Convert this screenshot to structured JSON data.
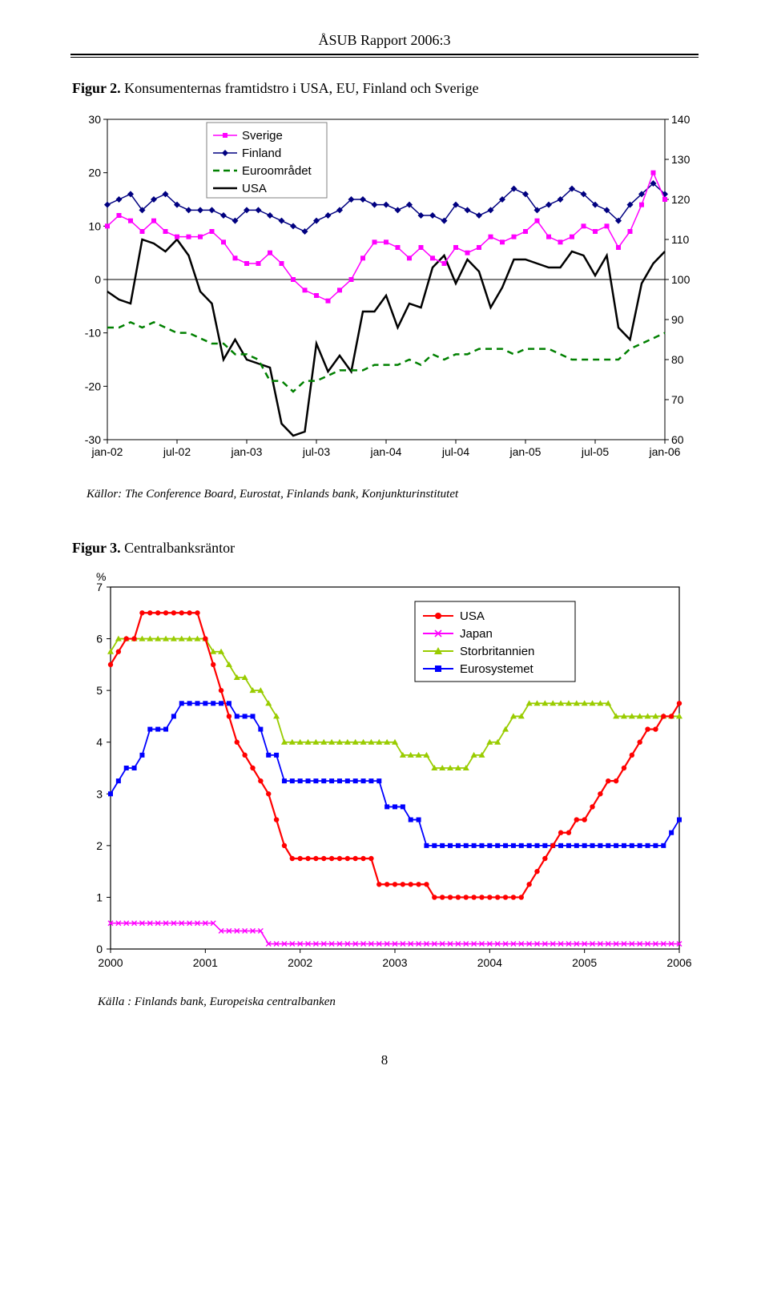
{
  "header": {
    "running_title": "ÅSUB Rapport 2006:3"
  },
  "page_number": "8",
  "fig1": {
    "title_prefix": "Figur 2.",
    "title_rest": " Konsumenternas framtidstro i USA, EU, Finland och Sverige",
    "source_label": "Källor:",
    "source_text": " The Conference Board, Eurostat, Finlands bank, Konjunkturinstitutet",
    "type": "line",
    "left_axis": {
      "min": -30,
      "max": 30,
      "ticks": [
        -30,
        -20,
        -10,
        0,
        10,
        20,
        30
      ]
    },
    "right_axis": {
      "min": 60,
      "max": 140,
      "ticks": [
        60,
        70,
        80,
        90,
        100,
        110,
        120,
        130,
        140
      ]
    },
    "x_labels": [
      "jan-02",
      "jul-02",
      "jan-03",
      "jul-03",
      "jan-04",
      "jul-04",
      "jan-05",
      "jul-05",
      "jan-06"
    ],
    "x_count": 49,
    "colors": {
      "sverige": "#ff00ff",
      "finland": "#000080",
      "euro": "#008000",
      "usa": "#000000",
      "grid": "#000000",
      "bg": "#ffffff",
      "legend_border": "#808080"
    },
    "legend": {
      "items": [
        {
          "key": "sverige",
          "label": "Sverige",
          "marker": "square-line",
          "color": "#ff00ff"
        },
        {
          "key": "finland",
          "label": "Finland",
          "marker": "diamond-line",
          "color": "#000080"
        },
        {
          "key": "euro",
          "label": "Euroområdet",
          "marker": "dash",
          "color": "#008000"
        },
        {
          "key": "usa",
          "label": "USA",
          "marker": "solid",
          "color": "#000000"
        }
      ]
    },
    "series": {
      "sverige": [
        10,
        12,
        11,
        9,
        11,
        9,
        8,
        8,
        8,
        9,
        7,
        4,
        3,
        3,
        5,
        3,
        0,
        -2,
        -3,
        -4,
        -2,
        0,
        4,
        7,
        7,
        6,
        4,
        6,
        4,
        3,
        6,
        5,
        6,
        8,
        7,
        8,
        9,
        11,
        8,
        7,
        8,
        10,
        9,
        10,
        6,
        9,
        14,
        20,
        15
      ],
      "finland": [
        14,
        15,
        16,
        13,
        15,
        16,
        14,
        13,
        13,
        13,
        12,
        11,
        13,
        13,
        12,
        11,
        10,
        9,
        11,
        12,
        13,
        15,
        15,
        14,
        14,
        13,
        14,
        12,
        12,
        11,
        14,
        13,
        12,
        13,
        15,
        17,
        16,
        13,
        14,
        15,
        17,
        16,
        14,
        13,
        11,
        14,
        16,
        18,
        16
      ],
      "euro": [
        -9,
        -9,
        -8,
        -9,
        -8,
        -9,
        -10,
        -10,
        -11,
        -12,
        -12,
        -14,
        -14,
        -15,
        -19,
        -19,
        -21,
        -19,
        -19,
        -18,
        -17,
        -17,
        -17,
        -16,
        -16,
        -16,
        -15,
        -16,
        -14,
        -15,
        -14,
        -14,
        -13,
        -13,
        -13,
        -14,
        -13,
        -13,
        -13,
        -14,
        -15,
        -15,
        -15,
        -15,
        -15,
        -13,
        -12,
        -11,
        -10
      ],
      "usa": [
        97,
        95,
        94,
        110,
        109,
        107,
        110,
        106,
        97,
        94,
        80,
        85,
        80,
        79,
        78,
        64,
        61,
        62,
        84,
        77,
        81,
        77,
        92,
        92,
        96,
        88,
        94,
        93,
        103,
        106,
        99,
        105,
        102,
        93,
        98,
        105,
        105,
        104,
        103,
        103,
        107,
        106,
        101,
        106,
        88,
        85,
        99,
        104,
        107
      ]
    }
  },
  "fig2": {
    "title_prefix": "Figur 3.",
    "title_rest": " Centralbanksräntor",
    "source_label": "Källa",
    "source_text": " : Finlands bank, Europeiska centralbanken",
    "y_label": "%",
    "type": "line",
    "y_axis": {
      "min": 0,
      "max": 7,
      "ticks": [
        0,
        1,
        2,
        3,
        4,
        5,
        6,
        7
      ]
    },
    "x_labels": [
      "2000",
      "2001",
      "2002",
      "2003",
      "2004",
      "2005",
      "2006"
    ],
    "x_count": 73,
    "colors": {
      "usa": "#ff0000",
      "japan": "#ff00ff",
      "uk": "#99cc00",
      "euro": "#0000ff",
      "grid": "#000000",
      "bg": "#ffffff",
      "legend_border": "#000000"
    },
    "legend": {
      "items": [
        {
          "key": "usa",
          "label": "USA",
          "marker": "circle",
          "color": "#ff0000"
        },
        {
          "key": "japan",
          "label": "Japan",
          "marker": "x",
          "color": "#ff00ff"
        },
        {
          "key": "uk",
          "label": "Storbritannien",
          "marker": "triangle",
          "color": "#99cc00"
        },
        {
          "key": "euro",
          "label": "Eurosystemet",
          "marker": "square",
          "color": "#0000ff"
        }
      ]
    },
    "series": {
      "usa": [
        5.5,
        5.75,
        6.0,
        6.0,
        6.5,
        6.5,
        6.5,
        6.5,
        6.5,
        6.5,
        6.5,
        6.5,
        6.0,
        5.5,
        5.0,
        4.5,
        4.0,
        3.75,
        3.5,
        3.25,
        3.0,
        2.5,
        2.0,
        1.75,
        1.75,
        1.75,
        1.75,
        1.75,
        1.75,
        1.75,
        1.75,
        1.75,
        1.75,
        1.75,
        1.25,
        1.25,
        1.25,
        1.25,
        1.25,
        1.25,
        1.25,
        1.0,
        1.0,
        1.0,
        1.0,
        1.0,
        1.0,
        1.0,
        1.0,
        1.0,
        1.0,
        1.0,
        1.0,
        1.25,
        1.5,
        1.75,
        2.0,
        2.25,
        2.25,
        2.5,
        2.5,
        2.75,
        3.0,
        3.25,
        3.25,
        3.5,
        3.75,
        4.0,
        4.25,
        4.25,
        4.5,
        4.5,
        4.75
      ],
      "japan": [
        0.5,
        0.5,
        0.5,
        0.5,
        0.5,
        0.5,
        0.5,
        0.5,
        0.5,
        0.5,
        0.5,
        0.5,
        0.5,
        0.5,
        0.35,
        0.35,
        0.35,
        0.35,
        0.35,
        0.35,
        0.1,
        0.1,
        0.1,
        0.1,
        0.1,
        0.1,
        0.1,
        0.1,
        0.1,
        0.1,
        0.1,
        0.1,
        0.1,
        0.1,
        0.1,
        0.1,
        0.1,
        0.1,
        0.1,
        0.1,
        0.1,
        0.1,
        0.1,
        0.1,
        0.1,
        0.1,
        0.1,
        0.1,
        0.1,
        0.1,
        0.1,
        0.1,
        0.1,
        0.1,
        0.1,
        0.1,
        0.1,
        0.1,
        0.1,
        0.1,
        0.1,
        0.1,
        0.1,
        0.1,
        0.1,
        0.1,
        0.1,
        0.1,
        0.1,
        0.1,
        0.1,
        0.1,
        0.1
      ],
      "uk": [
        5.75,
        6.0,
        6.0,
        6.0,
        6.0,
        6.0,
        6.0,
        6.0,
        6.0,
        6.0,
        6.0,
        6.0,
        6.0,
        5.75,
        5.75,
        5.5,
        5.25,
        5.25,
        5.0,
        5.0,
        4.75,
        4.5,
        4.0,
        4.0,
        4.0,
        4.0,
        4.0,
        4.0,
        4.0,
        4.0,
        4.0,
        4.0,
        4.0,
        4.0,
        4.0,
        4.0,
        4.0,
        3.75,
        3.75,
        3.75,
        3.75,
        3.5,
        3.5,
        3.5,
        3.5,
        3.5,
        3.75,
        3.75,
        4.0,
        4.0,
        4.25,
        4.5,
        4.5,
        4.75,
        4.75,
        4.75,
        4.75,
        4.75,
        4.75,
        4.75,
        4.75,
        4.75,
        4.75,
        4.75,
        4.5,
        4.5,
        4.5,
        4.5,
        4.5,
        4.5,
        4.5,
        4.5,
        4.5
      ],
      "euro": [
        3.0,
        3.25,
        3.5,
        3.5,
        3.75,
        4.25,
        4.25,
        4.25,
        4.5,
        4.75,
        4.75,
        4.75,
        4.75,
        4.75,
        4.75,
        4.75,
        4.5,
        4.5,
        4.5,
        4.25,
        3.75,
        3.75,
        3.25,
        3.25,
        3.25,
        3.25,
        3.25,
        3.25,
        3.25,
        3.25,
        3.25,
        3.25,
        3.25,
        3.25,
        3.25,
        2.75,
        2.75,
        2.75,
        2.5,
        2.5,
        2.0,
        2.0,
        2.0,
        2.0,
        2.0,
        2.0,
        2.0,
        2.0,
        2.0,
        2.0,
        2.0,
        2.0,
        2.0,
        2.0,
        2.0,
        2.0,
        2.0,
        2.0,
        2.0,
        2.0,
        2.0,
        2.0,
        2.0,
        2.0,
        2.0,
        2.0,
        2.0,
        2.0,
        2.0,
        2.0,
        2.0,
        2.25,
        2.5
      ]
    }
  }
}
